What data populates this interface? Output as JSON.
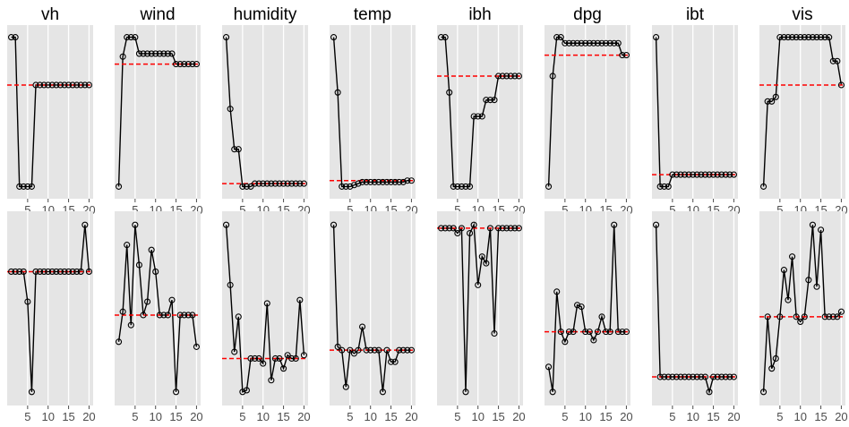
{
  "chart_data": {
    "type": "line",
    "layout": "facet-grid",
    "panel_titles": [
      "vh",
      "wind",
      "humidity",
      "temp",
      "ibh",
      "dpg",
      "ibt",
      "vis"
    ],
    "x": [
      1,
      2,
      3,
      4,
      5,
      6,
      7,
      8,
      9,
      10,
      11,
      12,
      13,
      14,
      15,
      16,
      17,
      18,
      19,
      20
    ],
    "x_tick_labels": [
      "5",
      "10",
      "15",
      "20"
    ],
    "x_ticks": [
      5,
      10,
      15,
      20
    ],
    "xlim": [
      0,
      21
    ],
    "ylim": [
      0,
      1
    ],
    "grid": true,
    "background": "#e5e5e5",
    "line_color": "#000000",
    "point_style": "open-circle",
    "reference_line": {
      "color": "#ff0000",
      "style": "dashed"
    },
    "rows": [
      {
        "panels": [
          {
            "title": "vh",
            "values": [
              1.0,
              1.0,
              0.0,
              0.0,
              0.0,
              0.0,
              0.68,
              0.68,
              0.68,
              0.68,
              0.68,
              0.68,
              0.68,
              0.68,
              0.68,
              0.68,
              0.68,
              0.68,
              0.68,
              0.68
            ],
            "reference": 0.68
          },
          {
            "title": "wind",
            "values": [
              0.0,
              0.87,
              1.0,
              1.0,
              1.0,
              0.89,
              0.89,
              0.89,
              0.89,
              0.89,
              0.89,
              0.89,
              0.89,
              0.89,
              0.82,
              0.82,
              0.82,
              0.82,
              0.82,
              0.82
            ],
            "reference": 0.82
          },
          {
            "title": "humidity",
            "values": [
              1.0,
              0.52,
              0.25,
              0.25,
              0.0,
              0.0,
              0.0,
              0.02,
              0.02,
              0.02,
              0.02,
              0.02,
              0.02,
              0.02,
              0.02,
              0.02,
              0.02,
              0.02,
              0.02,
              0.02
            ],
            "reference": 0.02
          },
          {
            "title": "temp",
            "values": [
              1.0,
              0.63,
              0.0,
              0.0,
              0.0,
              0.01,
              0.02,
              0.03,
              0.03,
              0.03,
              0.03,
              0.03,
              0.03,
              0.03,
              0.03,
              0.03,
              0.03,
              0.03,
              0.04,
              0.04
            ],
            "reference": 0.04
          },
          {
            "title": "ibh",
            "values": [
              1.0,
              1.0,
              0.63,
              0.0,
              0.0,
              0.0,
              0.0,
              0.0,
              0.47,
              0.47,
              0.47,
              0.58,
              0.58,
              0.58,
              0.74,
              0.74,
              0.74,
              0.74,
              0.74,
              0.74
            ],
            "reference": 0.74
          },
          {
            "title": "dpg",
            "values": [
              0.0,
              0.74,
              1.0,
              1.0,
              0.96,
              0.96,
              0.96,
              0.96,
              0.96,
              0.96,
              0.96,
              0.96,
              0.96,
              0.96,
              0.96,
              0.96,
              0.96,
              0.96,
              0.88,
              0.88
            ],
            "reference": 0.88
          },
          {
            "title": "ibt",
            "values": [
              1.0,
              0.0,
              0.0,
              0.0,
              0.08,
              0.08,
              0.08,
              0.08,
              0.08,
              0.08,
              0.08,
              0.08,
              0.08,
              0.08,
              0.08,
              0.08,
              0.08,
              0.08,
              0.08,
              0.08
            ],
            "reference": 0.08
          },
          {
            "title": "vis",
            "values": [
              0.0,
              0.57,
              0.57,
              0.6,
              1.0,
              1.0,
              1.0,
              1.0,
              1.0,
              1.0,
              1.0,
              1.0,
              1.0,
              1.0,
              1.0,
              1.0,
              1.0,
              0.84,
              0.84,
              0.68
            ],
            "reference": 0.68
          }
        ]
      },
      {
        "panels": [
          {
            "title": "vh",
            "values": [
              0.72,
              0.72,
              0.72,
              0.72,
              0.54,
              0.0,
              0.72,
              0.72,
              0.72,
              0.72,
              0.72,
              0.72,
              0.72,
              0.72,
              0.72,
              0.72,
              0.72,
              0.72,
              1.0,
              0.72
            ],
            "reference": 0.72
          },
          {
            "title": "wind",
            "values": [
              0.3,
              0.48,
              0.88,
              0.4,
              1.0,
              0.76,
              0.46,
              0.54,
              0.85,
              0.72,
              0.46,
              0.46,
              0.46,
              0.55,
              0.0,
              0.46,
              0.46,
              0.46,
              0.46,
              0.27
            ],
            "reference": 0.46
          },
          {
            "title": "humidity",
            "values": [
              1.0,
              0.64,
              0.24,
              0.45,
              0.0,
              0.01,
              0.2,
              0.2,
              0.2,
              0.17,
              0.53,
              0.07,
              0.2,
              0.2,
              0.14,
              0.22,
              0.2,
              0.2,
              0.55,
              0.22
            ],
            "reference": 0.2
          },
          {
            "title": "temp",
            "values": [
              1.0,
              0.27,
              0.25,
              0.03,
              0.25,
              0.23,
              0.25,
              0.39,
              0.25,
              0.25,
              0.25,
              0.25,
              0.0,
              0.25,
              0.18,
              0.18,
              0.25,
              0.25,
              0.25,
              0.25
            ],
            "reference": 0.25
          },
          {
            "title": "ibh",
            "values": [
              0.98,
              0.98,
              0.98,
              0.98,
              0.95,
              0.98,
              0.0,
              0.95,
              1.0,
              0.64,
              0.81,
              0.77,
              0.98,
              0.35,
              0.98,
              0.98,
              0.98,
              0.98,
              0.98,
              0.98
            ],
            "reference": 0.98
          },
          {
            "title": "dpg",
            "values": [
              0.15,
              0.0,
              0.6,
              0.36,
              0.3,
              0.36,
              0.36,
              0.52,
              0.51,
              0.36,
              0.36,
              0.31,
              0.36,
              0.45,
              0.36,
              0.36,
              1.0,
              0.36,
              0.36,
              0.36
            ],
            "reference": 0.36
          },
          {
            "title": "ibt",
            "values": [
              1.0,
              0.09,
              0.09,
              0.09,
              0.09,
              0.09,
              0.09,
              0.09,
              0.09,
              0.09,
              0.09,
              0.09,
              0.09,
              0.0,
              0.09,
              0.09,
              0.09,
              0.09,
              0.09,
              0.09
            ],
            "reference": 0.09
          },
          {
            "title": "vis",
            "values": [
              0.0,
              0.45,
              0.14,
              0.2,
              0.45,
              0.73,
              0.55,
              0.81,
              0.45,
              0.42,
              0.45,
              0.67,
              1.0,
              0.63,
              0.97,
              0.45,
              0.45,
              0.45,
              0.45,
              0.48
            ],
            "reference": 0.45
          }
        ]
      }
    ]
  }
}
